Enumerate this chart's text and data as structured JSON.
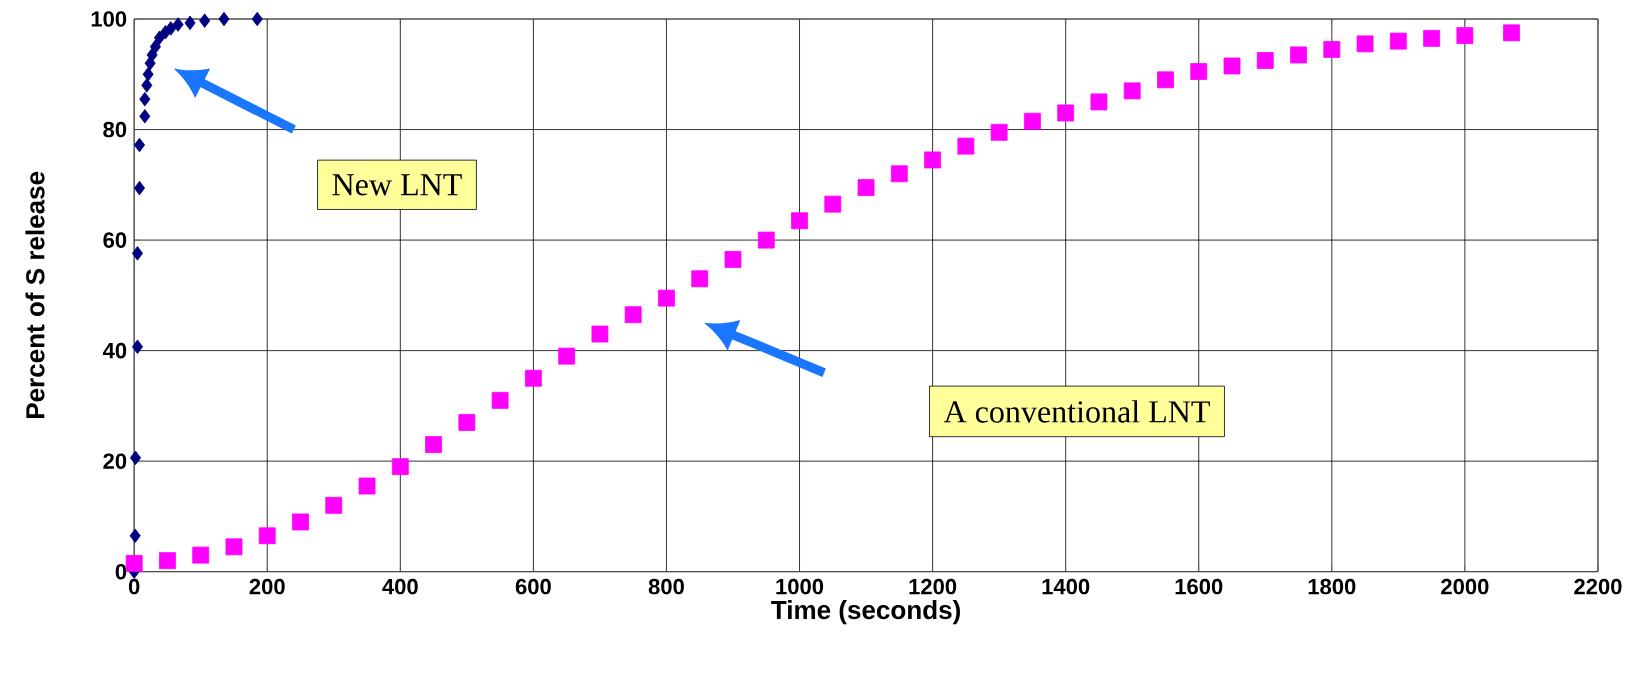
{
  "chart_data": {
    "type": "scatter",
    "xlabel": "Time (seconds)",
    "ylabel": "Percent of S release",
    "xlim": [
      0,
      2200
    ],
    "ylim": [
      0,
      100
    ],
    "xticks": [
      0,
      200,
      400,
      600,
      800,
      1000,
      1200,
      1400,
      1600,
      1800,
      2000,
      2200
    ],
    "yticks": [
      0,
      20,
      40,
      60,
      80,
      100
    ],
    "grid": true,
    "series": [
      {
        "color": "#000080",
        "marker": "diamond",
        "x": [
          0,
          1.5,
          2,
          5,
          5,
          8,
          8,
          16,
          16,
          19,
          21,
          24,
          27,
          32,
          38,
          47,
          55,
          66,
          84,
          106,
          135,
          185
        ],
        "values": [
          0,
          6.5,
          20.6,
          40.7,
          57.6,
          69.4,
          77.2,
          82.4,
          85.5,
          88,
          90,
          92,
          93.5,
          95,
          96.6,
          97.6,
          98.3,
          99,
          99.3,
          99.7,
          100,
          100
        ]
      },
      {
        "color": "#ff00ff",
        "marker": "square",
        "x": [
          0,
          50,
          100,
          150,
          200,
          250,
          300,
          350,
          400,
          450,
          500,
          550,
          600,
          650,
          700,
          750,
          800,
          850,
          900,
          950,
          1000,
          1050,
          1100,
          1150,
          1200,
          1250,
          1300,
          1350,
          1400,
          1450,
          1500,
          1550,
          1600,
          1650,
          1700,
          1750,
          1800,
          1850,
          1900,
          1950,
          2000,
          2070
        ],
        "values": [
          1.5,
          2,
          3,
          4.5,
          6.5,
          9,
          12,
          15.5,
          19,
          23,
          27,
          31,
          35,
          39,
          43,
          46.5,
          49.5,
          53,
          56.5,
          60,
          63.5,
          66.5,
          69.5,
          72,
          74.5,
          77,
          79.5,
          81.5,
          83,
          85,
          87,
          89,
          90.5,
          91.5,
          92.5,
          93.5,
          94.5,
          95.5,
          96,
          96.5,
          97,
          97.5
        ]
      }
    ],
    "annotations": [
      "New LNT",
      "A conventional LNT"
    ]
  }
}
